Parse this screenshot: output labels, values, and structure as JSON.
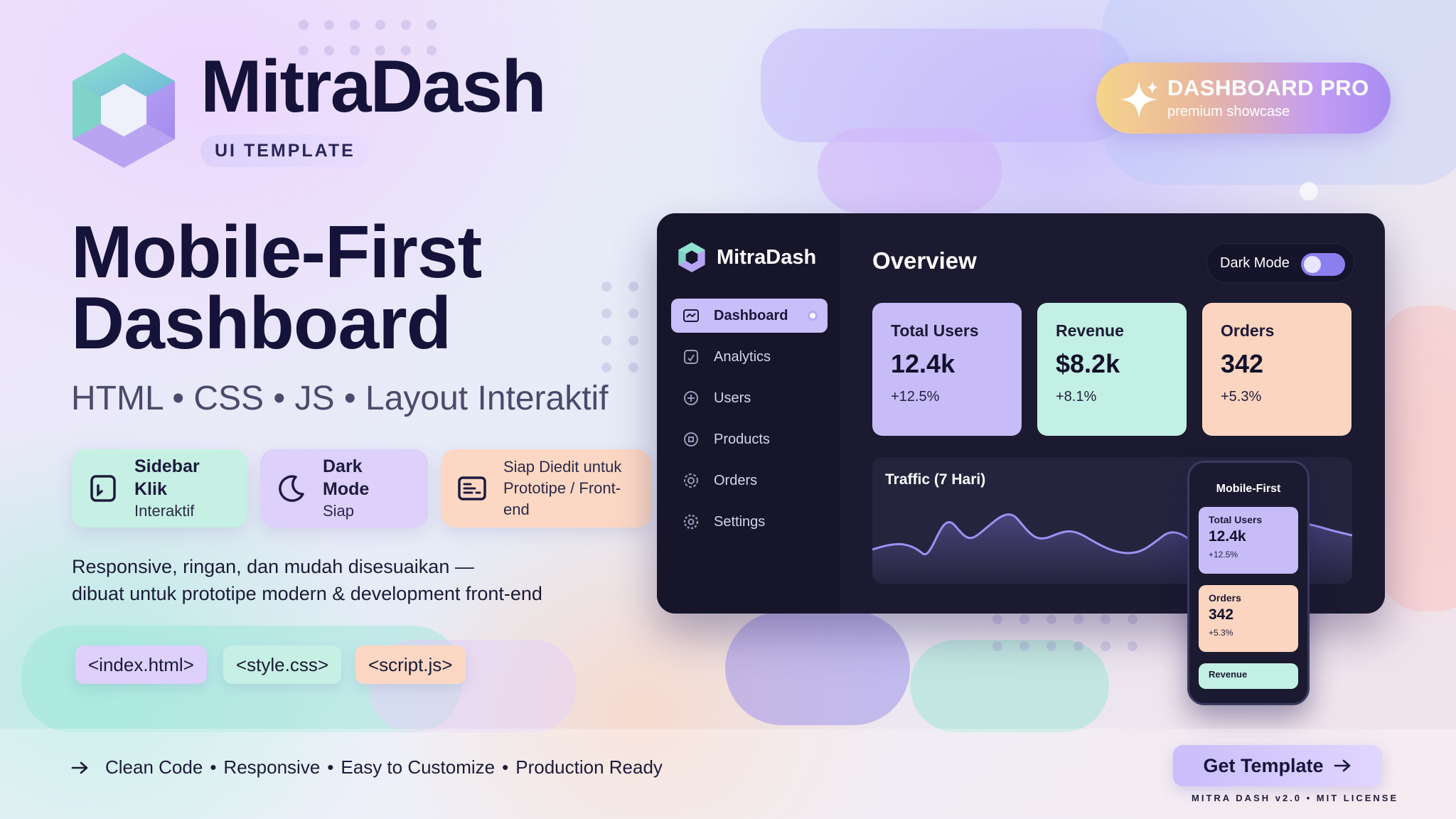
{
  "brand": {
    "title": "MitraDash",
    "tag": "UI TEMPLATE"
  },
  "hero": {
    "line1": "Mobile-First",
    "line2": "Dashboard",
    "subtitle": "HTML • CSS • JS • Layout Interaktif"
  },
  "features": [
    {
      "title": "Sidebar Klik",
      "subtitle": "Interaktif",
      "icon": "sidebar-icon",
      "color": "#c6f0e3"
    },
    {
      "title": "Dark Mode",
      "subtitle": "Siap",
      "icon": "moon-icon",
      "color": "#ddd0fa"
    },
    {
      "title": "Siap Diedit untuk",
      "subtitle": "Prototipe / Front-end",
      "icon": "code-window-icon",
      "color": "#fcd8c4"
    }
  ],
  "description": {
    "line1": "Responsive, ringan, dan mudah disesuaikan —",
    "line2": "dibuat untuk prototipe modern & development front-end"
  },
  "files": [
    "<index.html>",
    "<style.css>",
    "<script.js>"
  ],
  "footer": {
    "items": [
      "Clean Code",
      "Responsive",
      "Easy to Customize",
      "Production Ready"
    ],
    "separator": "•",
    "cta": "Get Template",
    "license": "MITRA DASH v2.0 • MIT LICENSE"
  },
  "pro_badge": {
    "title": "DASHBOARD PRO",
    "subtitle": "premium showcase",
    "icon": "sparkle-icon"
  },
  "dashboard": {
    "brand": "MitraDash",
    "nav": [
      {
        "label": "Dashboard",
        "icon": "dashboard-icon",
        "active": true
      },
      {
        "label": "Analytics",
        "icon": "analytics-icon",
        "active": false
      },
      {
        "label": "Users",
        "icon": "users-icon",
        "active": false
      },
      {
        "label": "Products",
        "icon": "products-icon",
        "active": false
      },
      {
        "label": "Orders",
        "icon": "orders-icon",
        "active": false
      },
      {
        "label": "Settings",
        "icon": "settings-icon",
        "active": false
      }
    ],
    "overview_title": "Overview",
    "dark_mode_label": "Dark Mode",
    "dark_mode_on": true,
    "stats": [
      {
        "label": "Total Users",
        "value": "12.4k",
        "change": "+12.5%",
        "color": "#c7bcf8"
      },
      {
        "label": "Revenue",
        "value": "$8.2k",
        "change": "+8.1%",
        "color": "#c3f0e4"
      },
      {
        "label": "Orders",
        "value": "342",
        "change": "+5.3%",
        "color": "#fcd5c0"
      }
    ],
    "traffic_title": "Traffic (7 Hari)"
  },
  "mobile": {
    "title": "Mobile-First",
    "cards": [
      {
        "label": "Total Users",
        "value": "12.4k",
        "change": "+12.5%",
        "color": "#c7bcf8"
      },
      {
        "label": "Orders",
        "value": "342",
        "change": "+5.3%",
        "color": "#fcd5c0"
      },
      {
        "label": "Revenue",
        "color": "#c3f0e4"
      }
    ]
  }
}
